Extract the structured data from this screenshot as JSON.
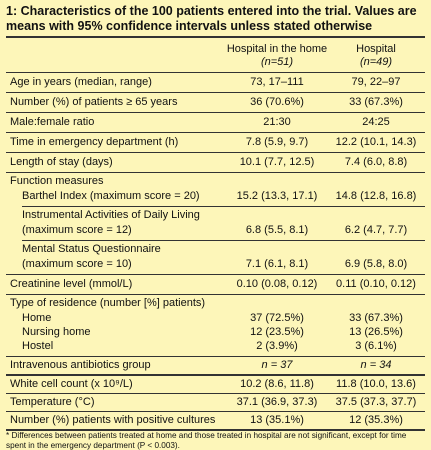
{
  "title": "1: Characteristics of the 100 patients entered into the trial. Values are means  with 95% confidence intervals unless stated otherwise",
  "columns": [
    {
      "label": "Hospital in the home",
      "n": "(n=51)"
    },
    {
      "label": "Hospital",
      "n": "(n=49)"
    }
  ],
  "rows": [
    {
      "label": "Age in years (median, range)",
      "home": "73, 17–111",
      "hospital": "79, 22–97"
    },
    {
      "label": "Number (%) of patients ≥ 65 years",
      "home": "36 (70.6%)",
      "hospital": "33 (67.3%)"
    },
    {
      "label": "Male:female ratio",
      "home": "21:30",
      "hospital": "24:25"
    },
    {
      "label": "Time in emergency department (h)",
      "home": "7.8 (5.9, 9.7)",
      "hospital": "12.2 (10.1, 14.3)"
    },
    {
      "label": "Length of stay (days)",
      "home": "10.1 (7.7, 12.5)",
      "hospital": "7.4 (6.0, 8.8)"
    },
    {
      "label": "Function measures",
      "home": "",
      "hospital": ""
    },
    {
      "label": "Barthel Index (maximum score = 20)",
      "home": "15.2 (13.3, 17.1)",
      "hospital": "14.8 (12.8, 16.8)"
    },
    {
      "label": "Instrumental Activities of Daily Living",
      "home": "",
      "hospital": ""
    },
    {
      "label": "(maximum score = 12)",
      "home": "6.8 (5.5, 8.1)",
      "hospital": "6.2 (4.7, 7.7)"
    },
    {
      "label": "Mental Status Questionnaire",
      "home": "",
      "hospital": ""
    },
    {
      "label": "(maximum score = 10)",
      "home": "7.1 (6.1, 8.1)",
      "hospital": "6.9 (5.8, 8.0)"
    },
    {
      "label": "Creatinine level (mmol/L)",
      "home": "0.10 (0.08, 0.12)",
      "hospital": "0.11 (0.10, 0.12)"
    },
    {
      "label": "Type of residence (number [%] patients)",
      "home": "",
      "hospital": ""
    },
    {
      "label": "Home",
      "home": "37 (72.5%)",
      "hospital": "33 (67.3%)"
    },
    {
      "label": "Nursing home",
      "home": "12 (23.5%)",
      "hospital": "13 (26.5%)"
    },
    {
      "label": "Hostel",
      "home": "2 (3.9%)",
      "hospital": "3 (6.1%)"
    },
    {
      "label": "Intravenous antibiotics group",
      "home": "n = 37",
      "hospital": "n = 34"
    },
    {
      "label": "White cell count (x 10⁹/L)",
      "home": "10.2 (8.6, 11.8)",
      "hospital": "11.8 (10.0, 13.6)"
    },
    {
      "label": "Temperature (°C)",
      "home": "37.1 (36.9, 37.3)",
      "hospital": "37.5 (37.3, 37.7)"
    },
    {
      "label": "Number (%) patients with positive cultures",
      "home": "13 (35.1%)",
      "hospital": "12 (35.3%)"
    }
  ],
  "footnote": "* Differences between patients treated at home and those treated in hospital are not significant, except for time spent in the emergency department (P < 0.003)."
}
